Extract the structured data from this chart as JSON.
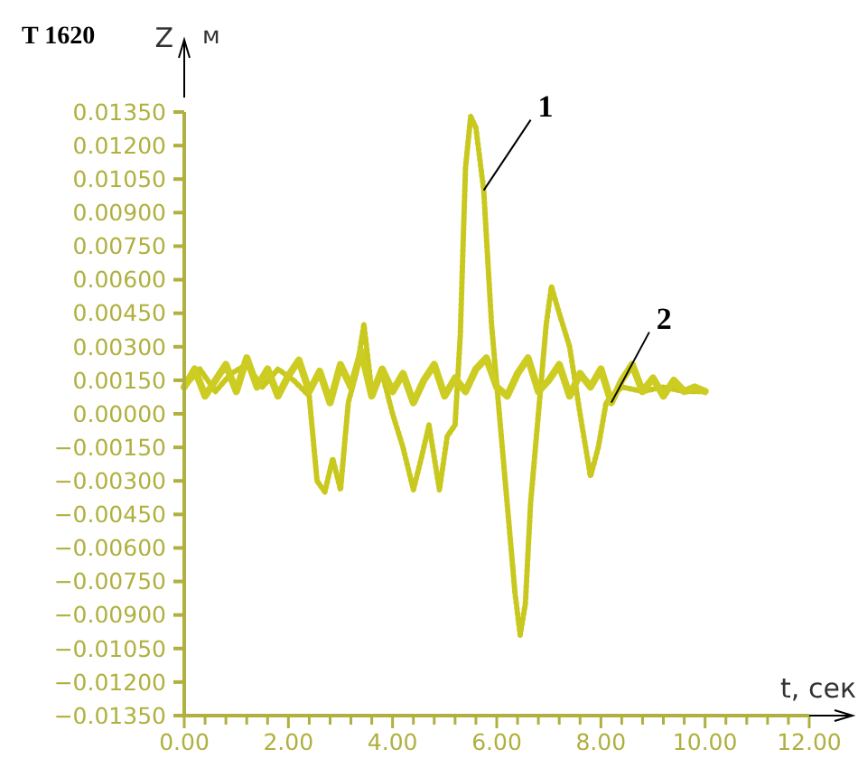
{
  "chart_data": {
    "type": "line",
    "title": "T 1620",
    "xlabel": "t, сек",
    "ylabel": "Z",
    "annotations": [
      "м"
    ],
    "x": [
      0,
      0.3,
      0.6,
      0.9,
      1.2,
      1.5,
      1.8,
      2.1,
      2.4,
      2.55,
      2.7,
      2.85,
      3.0,
      3.15,
      3.3,
      3.45,
      3.6,
      3.8,
      4.0,
      4.2,
      4.4,
      4.55,
      4.7,
      4.9,
      5.05,
      5.2,
      5.3,
      5.4,
      5.5,
      5.6,
      5.75,
      5.9,
      6.05,
      6.2,
      6.35,
      6.45,
      6.55,
      6.65,
      6.8,
      6.95,
      7.05,
      7.2,
      7.4,
      7.6,
      7.8,
      7.95,
      8.1,
      8.4,
      8.8,
      9.2,
      9.6,
      10.0
    ],
    "series": [
      {
        "name": "1",
        "color": "#c8c81e",
        "line_style": "dotted",
        "values": [
          0.0012,
          0.002,
          0.001,
          0.0018,
          0.0022,
          0.0012,
          0.002,
          0.0015,
          0.0008,
          -0.003,
          -0.0035,
          -0.002,
          -0.0034,
          0.0005,
          0.0018,
          0.004,
          0.001,
          0.0018,
          0.0,
          -0.0015,
          -0.0034,
          -0.002,
          -0.0005,
          -0.0034,
          -0.001,
          -0.0005,
          0.0035,
          0.011,
          0.0133,
          0.0128,
          0.01,
          0.004,
          0.0,
          -0.004,
          -0.008,
          -0.0099,
          -0.0085,
          -0.004,
          0.0,
          0.004,
          0.0057,
          0.0045,
          0.003,
          0.0,
          -0.0028,
          -0.0015,
          0.0005,
          0.0012,
          0.001,
          0.0012,
          0.001,
          0.001
        ]
      },
      {
        "name": "2",
        "color": "#cccc22",
        "line_style": "solid",
        "x": [
          0,
          0.2,
          0.4,
          0.6,
          0.8,
          1.0,
          1.2,
          1.4,
          1.6,
          1.8,
          2.0,
          2.2,
          2.4,
          2.6,
          2.8,
          3.0,
          3.2,
          3.4,
          3.6,
          3.8,
          4.0,
          4.2,
          4.4,
          4.6,
          4.8,
          5.0,
          5.2,
          5.4,
          5.6,
          5.8,
          6.0,
          6.2,
          6.4,
          6.6,
          6.8,
          7.0,
          7.2,
          7.4,
          7.6,
          7.8,
          8.0,
          8.2,
          8.4,
          8.6,
          8.8,
          9.0,
          9.2,
          9.4,
          9.6,
          9.8,
          10.0
        ],
        "values": [
          0.0012,
          0.002,
          0.0008,
          0.0015,
          0.0022,
          0.001,
          0.0025,
          0.0012,
          0.002,
          0.0008,
          0.0017,
          0.0024,
          0.001,
          0.0019,
          0.0005,
          0.0022,
          0.0012,
          0.0028,
          0.0008,
          0.002,
          0.001,
          0.0018,
          0.0005,
          0.0015,
          0.0022,
          0.0008,
          0.0016,
          0.001,
          0.002,
          0.0025,
          0.0012,
          0.0008,
          0.0018,
          0.0025,
          0.001,
          0.0015,
          0.0022,
          0.0008,
          0.0018,
          0.0012,
          0.002,
          0.0005,
          0.0015,
          0.0022,
          0.001,
          0.0016,
          0.0008,
          0.0015,
          0.001,
          0.0012,
          0.001
        ]
      }
    ],
    "xlim": [
      0,
      12
    ],
    "xticks": [
      {
        "value": 0,
        "label": "0.00"
      },
      {
        "value": 0.4,
        "label": null
      },
      {
        "value": 0.8,
        "label": null
      },
      {
        "value": 1.2,
        "label": null
      },
      {
        "value": 1.6,
        "label": null
      },
      {
        "value": 2,
        "label": "2.00"
      },
      {
        "value": 2.4,
        "label": null
      },
      {
        "value": 2.8,
        "label": null
      },
      {
        "value": 3.2,
        "label": null
      },
      {
        "value": 3.6,
        "label": null
      },
      {
        "value": 4,
        "label": "4.00"
      },
      {
        "value": 4.4,
        "label": null
      },
      {
        "value": 4.8,
        "label": null
      },
      {
        "value": 5.2,
        "label": null
      },
      {
        "value": 5.6,
        "label": null
      },
      {
        "value": 6,
        "label": "6.00"
      },
      {
        "value": 6.4,
        "label": null
      },
      {
        "value": 6.8,
        "label": null
      },
      {
        "value": 7.2,
        "label": null
      },
      {
        "value": 7.6,
        "label": null
      },
      {
        "value": 8,
        "label": "8.00"
      },
      {
        "value": 8.4,
        "label": null
      },
      {
        "value": 8.8,
        "label": null
      },
      {
        "value": 9.2,
        "label": null
      },
      {
        "value": 9.6,
        "label": null
      },
      {
        "value": 10,
        "label": "10.00"
      },
      {
        "value": 10.4,
        "label": null
      },
      {
        "value": 10.8,
        "label": null
      },
      {
        "value": 11.2,
        "label": null
      },
      {
        "value": 11.6,
        "label": null
      },
      {
        "value": 12,
        "label": "12.00"
      }
    ],
    "ylim": [
      -0.0135,
      0.0135
    ],
    "yticks": [
      {
        "value": 0.0135,
        "label": "0.01350"
      },
      {
        "value": 0.012,
        "label": "0.01200"
      },
      {
        "value": 0.0105,
        "label": "0.01050"
      },
      {
        "value": 0.009,
        "label": "0.00900"
      },
      {
        "value": 0.0075,
        "label": "0.00750"
      },
      {
        "value": 0.006,
        "label": "0.00600"
      },
      {
        "value": 0.0045,
        "label": "0.00450"
      },
      {
        "value": 0.003,
        "label": "0.00300"
      },
      {
        "value": 0.0015,
        "label": "0.00150"
      },
      {
        "value": 0,
        "label": "0.00000"
      },
      {
        "value": -0.0015,
        "label": "−0.00150"
      },
      {
        "value": -0.003,
        "label": "−0.00300"
      },
      {
        "value": -0.0045,
        "label": "−0.00450"
      },
      {
        "value": -0.006,
        "label": "−0.00600"
      },
      {
        "value": -0.0075,
        "label": "−0.00750"
      },
      {
        "value": -0.009,
        "label": "−0.00900"
      },
      {
        "value": -0.0105,
        "label": "−0.01050"
      },
      {
        "value": -0.012,
        "label": "−0.01200"
      },
      {
        "value": -0.0135,
        "label": "−0.01350"
      }
    ],
    "grid": false,
    "marker": "none"
  }
}
